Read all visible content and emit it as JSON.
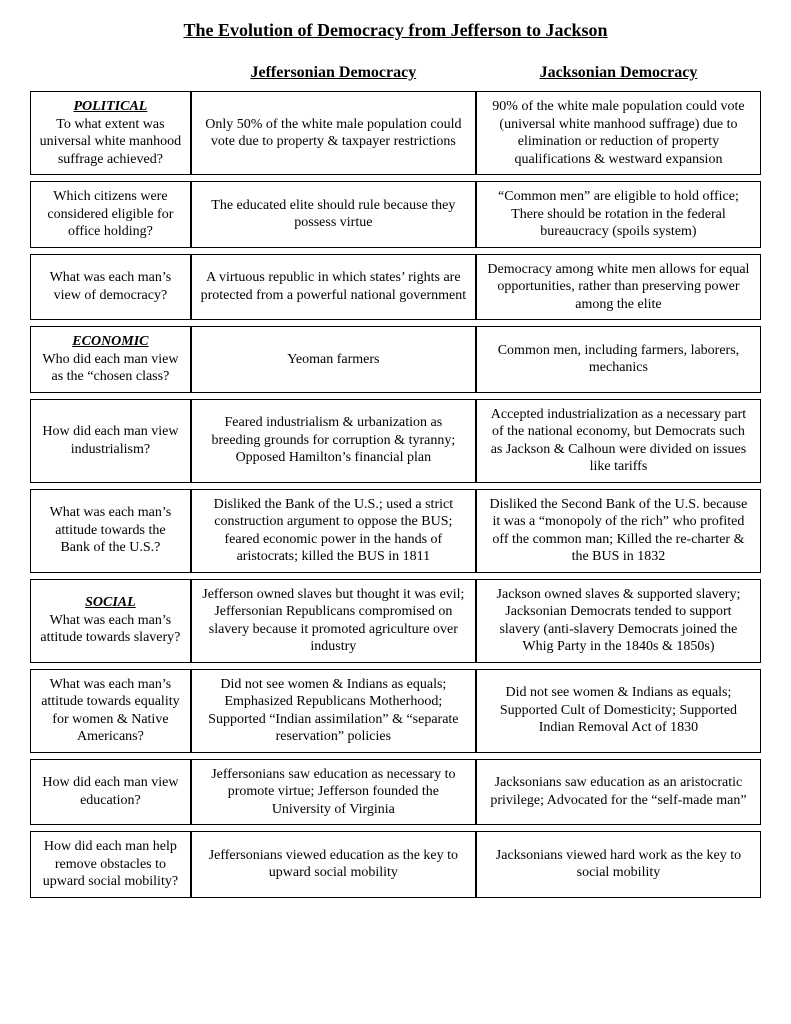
{
  "title": "The Evolution of Democracy from Jefferson to Jackson",
  "headers": {
    "col1": "Jeffersonian Democracy",
    "col2": "Jacksonian Democracy"
  },
  "sections": {
    "political": "POLITICAL",
    "economic": "ECONOMIC",
    "social": "SOCIAL"
  },
  "rows": [
    {
      "section": "political",
      "q": "To what extent was universal white manhood suffrage achieved?",
      "jeff": "Only 50% of the white male population could vote due to property & taxpayer restrictions",
      "jack": "90% of the white male population could vote (universal white manhood suffrage) due to elimination or reduction of property qualifications & westward expansion"
    },
    {
      "q": "Which citizens were considered eligible for office holding?",
      "jeff": "The educated elite should rule because they possess virtue",
      "jack": "“Common men” are eligible to hold office; There should be rotation in the federal bureaucracy (spoils system)"
    },
    {
      "q": "What was each man’s view of democracy?",
      "jeff": "A virtuous republic in which states’ rights are protected from a powerful national government",
      "jack": "Democracy among white men allows for equal opportunities, rather than preserving power among the elite"
    },
    {
      "section": "economic",
      "q": "Who did each man view as the “chosen class?",
      "jeff": "Yeoman farmers",
      "jack": "Common men, including farmers, laborers, mechanics"
    },
    {
      "q": "How did each man view industrialism?",
      "jeff": "Feared industrialism & urbanization as breeding grounds for corruption & tyranny; Opposed Hamilton’s financial plan",
      "jack": "Accepted industrialization as a necessary part of the national economy, but Democrats such as Jackson & Calhoun were divided on issues like tariffs"
    },
    {
      "q": "What was each man’s attitude towards the Bank of the U.S.?",
      "jeff": "Disliked the Bank of the U.S.; used a strict construction argument to oppose the BUS; feared economic power in the hands of aristocrats; killed the BUS in 1811",
      "jack": "Disliked the Second Bank of the U.S. because it was a “monopoly of the rich” who profited off the common man; Killed the re-charter & the BUS in 1832"
    },
    {
      "section": "social",
      "q": "What was each man’s attitude towards slavery?",
      "jeff": "Jefferson owned slaves but thought it was evil; Jeffersonian Republicans compromised on slavery because it promoted agriculture over industry",
      "jack": "Jackson owned slaves & supported slavery; Jacksonian Democrats tended to support slavery (anti-slavery Democrats joined the Whig Party in the 1840s & 1850s)"
    },
    {
      "q": "What was each man’s attitude towards equality for women & Native Americans?",
      "jeff": "Did not see women & Indians as equals; Emphasized Republicans Motherhood; Supported “Indian assimilation” & “separate reservation” policies",
      "jack": "Did not see women & Indians as equals; Supported Cult of Domesticity; Supported Indian Removal Act of 1830"
    },
    {
      "q": "How did each man view education?",
      "jeff": "Jeffersonians saw education as necessary to promote virtue; Jefferson founded the University of Virginia",
      "jack": "Jacksonians saw education as an aristocratic privilege; Advocated for the “self-made man”"
    },
    {
      "q": "How did each man help remove obstacles to upward social mobility?",
      "jeff": "Jeffersonians viewed education as the key to upward social mobility",
      "jack": "Jacksonians viewed hard work as the key to social mobility"
    }
  ]
}
